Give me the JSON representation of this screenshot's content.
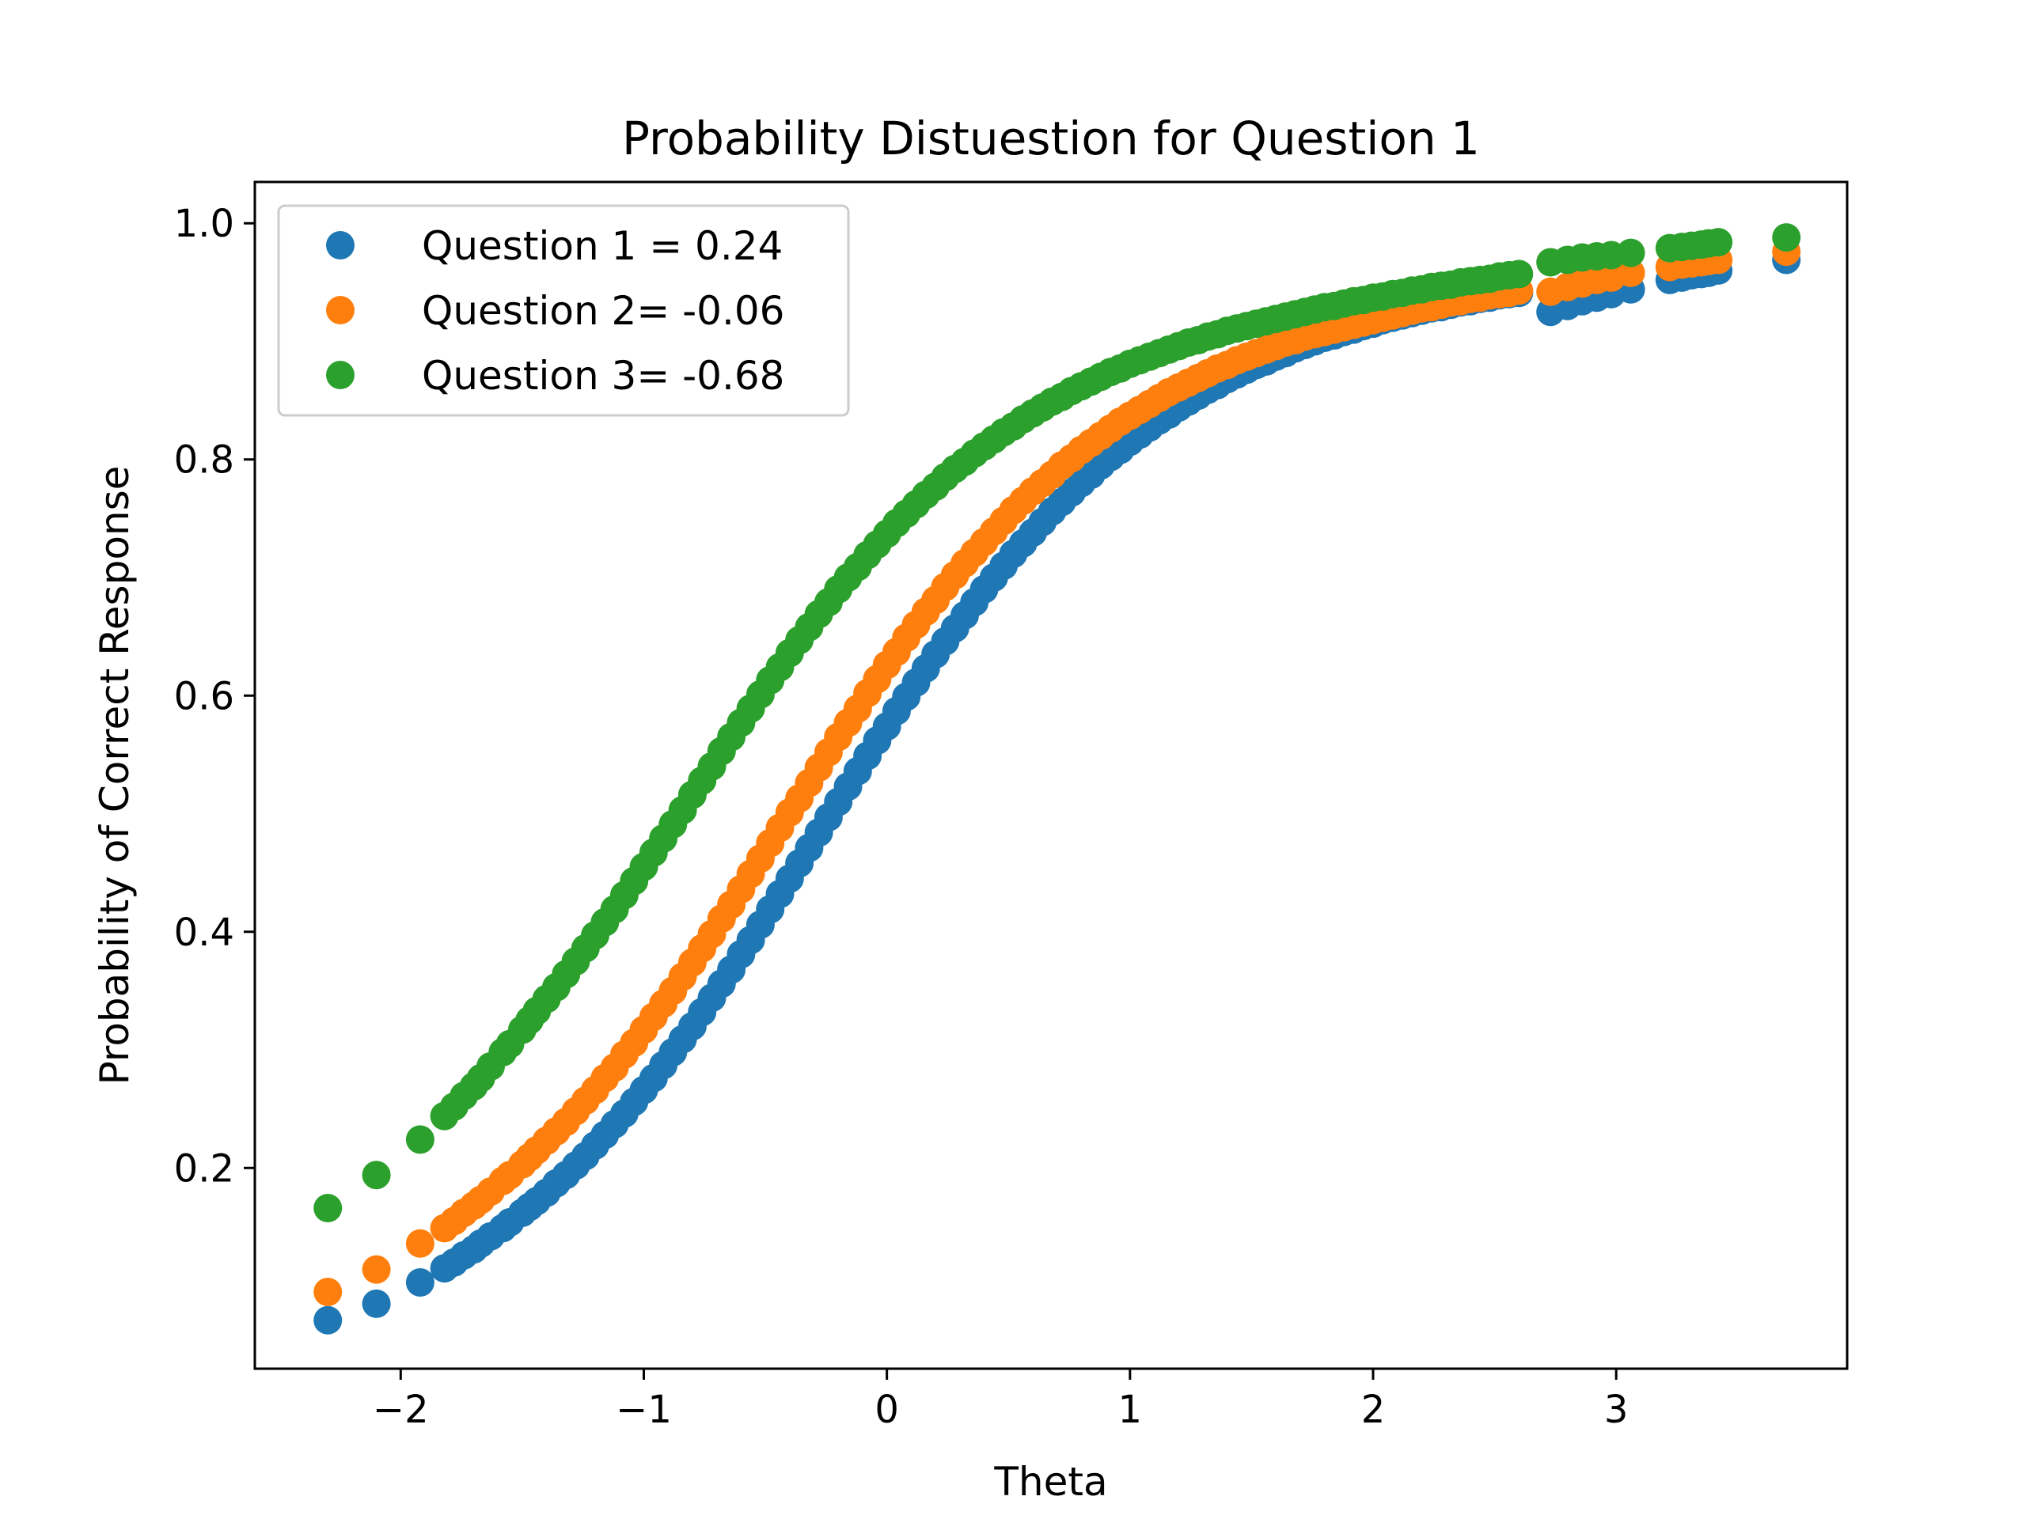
{
  "chart_data": {
    "type": "scatter",
    "title": "Probability Distuestion for Question 1",
    "xlabel": "Theta",
    "ylabel": "Probability of Correct Response",
    "xlim": [
      -2.6,
      3.95
    ],
    "ylim": [
      0.03,
      1.035
    ],
    "xticks": [
      -2,
      -1,
      0,
      1,
      2,
      3
    ],
    "yticks": [
      0.2,
      0.4,
      0.6,
      0.8,
      1.0
    ],
    "xtick_labels": [
      "−2",
      "−1",
      "0",
      "1",
      "2",
      "3"
    ],
    "ytick_labels": [
      "0.2",
      "0.4",
      "0.6",
      "0.8",
      "1.0"
    ],
    "grid": false,
    "legend_position": "upper-left",
    "x": [
      -2.3,
      -2.1,
      -1.92,
      -1.82,
      -1.78,
      -1.74,
      -1.7,
      -1.67,
      -1.63,
      -1.58,
      -1.55,
      -1.5,
      -1.47,
      -1.44,
      -1.4,
      -1.36,
      -1.32,
      -1.28,
      -1.24,
      -1.2,
      -1.16,
      -1.12,
      -1.08,
      -1.04,
      -1.0,
      -0.96,
      -0.92,
      -0.88,
      -0.84,
      -0.8,
      -0.76,
      -0.72,
      -0.68,
      -0.64,
      -0.6,
      -0.56,
      -0.52,
      -0.48,
      -0.44,
      -0.4,
      -0.36,
      -0.32,
      -0.28,
      -0.24,
      -0.2,
      -0.16,
      -0.12,
      -0.08,
      -0.04,
      0.0,
      0.04,
      0.08,
      0.12,
      0.16,
      0.2,
      0.24,
      0.28,
      0.32,
      0.36,
      0.4,
      0.44,
      0.48,
      0.52,
      0.56,
      0.6,
      0.64,
      0.68,
      0.72,
      0.76,
      0.8,
      0.84,
      0.88,
      0.92,
      0.96,
      1.0,
      1.04,
      1.08,
      1.12,
      1.16,
      1.2,
      1.24,
      1.28,
      1.32,
      1.36,
      1.4,
      1.44,
      1.48,
      1.52,
      1.56,
      1.6,
      1.64,
      1.68,
      1.72,
      1.76,
      1.8,
      1.84,
      1.88,
      1.92,
      1.96,
      2.0,
      2.04,
      2.08,
      2.12,
      2.16,
      2.2,
      2.24,
      2.28,
      2.32,
      2.36,
      2.4,
      2.44,
      2.48,
      2.52,
      2.56,
      2.6,
      2.73,
      2.8,
      2.86,
      2.92,
      2.98,
      3.06,
      3.22,
      3.27,
      3.31,
      3.35,
      3.38,
      3.42,
      3.7
    ],
    "series": [
      {
        "name": "Question 1 = 0.24",
        "color": "#1f77b4",
        "values": [
          0.071,
          0.085,
          0.103,
          0.115,
          0.12,
          0.126,
          0.131,
          0.136,
          0.142,
          0.149,
          0.154,
          0.162,
          0.167,
          0.172,
          0.179,
          0.187,
          0.194,
          0.202,
          0.21,
          0.219,
          0.228,
          0.237,
          0.246,
          0.256,
          0.266,
          0.276,
          0.287,
          0.298,
          0.309,
          0.32,
          0.332,
          0.344,
          0.356,
          0.368,
          0.381,
          0.393,
          0.406,
          0.419,
          0.432,
          0.445,
          0.458,
          0.471,
          0.484,
          0.497,
          0.51,
          0.523,
          0.536,
          0.549,
          0.562,
          0.574,
          0.587,
          0.599,
          0.611,
          0.623,
          0.635,
          0.646,
          0.657,
          0.668,
          0.679,
          0.69,
          0.7,
          0.71,
          0.72,
          0.729,
          0.738,
          0.747,
          0.756,
          0.764,
          0.772,
          0.78,
          0.787,
          0.795,
          0.802,
          0.808,
          0.815,
          0.821,
          0.827,
          0.833,
          0.838,
          0.844,
          0.849,
          0.854,
          0.859,
          0.863,
          0.868,
          0.872,
          0.876,
          0.88,
          0.883,
          0.887,
          0.89,
          0.894,
          0.897,
          0.9,
          0.903,
          0.905,
          0.908,
          0.91,
          0.913,
          0.915,
          0.918,
          0.92,
          0.922,
          0.924,
          0.926,
          0.928,
          0.929,
          0.931,
          0.933,
          0.934,
          0.936,
          0.937,
          0.939,
          0.94,
          0.941,
          0.925,
          0.93,
          0.934,
          0.937,
          0.94,
          0.944,
          0.952,
          0.954,
          0.956,
          0.957,
          0.958,
          0.96,
          0.969
        ]
      },
      {
        "name": "Question 2= -0.06",
        "color": "#ff7f0e",
        "values": [
          0.095,
          0.114,
          0.136,
          0.149,
          0.155,
          0.162,
          0.168,
          0.173,
          0.18,
          0.189,
          0.194,
          0.203,
          0.209,
          0.215,
          0.223,
          0.231,
          0.239,
          0.248,
          0.257,
          0.266,
          0.276,
          0.285,
          0.296,
          0.306,
          0.317,
          0.328,
          0.339,
          0.35,
          0.362,
          0.374,
          0.386,
          0.398,
          0.411,
          0.423,
          0.436,
          0.449,
          0.462,
          0.475,
          0.488,
          0.501,
          0.513,
          0.526,
          0.539,
          0.552,
          0.565,
          0.577,
          0.589,
          0.602,
          0.614,
          0.626,
          0.637,
          0.649,
          0.66,
          0.671,
          0.681,
          0.692,
          0.702,
          0.712,
          0.721,
          0.73,
          0.739,
          0.748,
          0.757,
          0.765,
          0.773,
          0.78,
          0.787,
          0.795,
          0.801,
          0.808,
          0.814,
          0.82,
          0.826,
          0.832,
          0.837,
          0.842,
          0.847,
          0.852,
          0.857,
          0.861,
          0.865,
          0.869,
          0.873,
          0.877,
          0.88,
          0.884,
          0.887,
          0.89,
          0.893,
          0.896,
          0.899,
          0.901,
          0.904,
          0.906,
          0.908,
          0.91,
          0.912,
          0.914,
          0.916,
          0.918,
          0.92,
          0.922,
          0.924,
          0.926,
          0.928,
          0.929,
          0.931,
          0.933,
          0.934,
          0.936,
          0.937,
          0.939,
          0.94,
          0.941,
          0.943,
          0.942,
          0.946,
          0.949,
          0.952,
          0.954,
          0.958,
          0.963,
          0.965,
          0.966,
          0.967,
          0.968,
          0.969,
          0.976
        ]
      },
      {
        "name": "Question 3= -0.68",
        "color": "#2ca02c",
        "values": [
          0.166,
          0.194,
          0.224,
          0.244,
          0.252,
          0.261,
          0.269,
          0.276,
          0.286,
          0.298,
          0.305,
          0.317,
          0.325,
          0.333,
          0.343,
          0.353,
          0.364,
          0.375,
          0.386,
          0.397,
          0.408,
          0.419,
          0.431,
          0.443,
          0.455,
          0.467,
          0.479,
          0.491,
          0.503,
          0.516,
          0.528,
          0.54,
          0.553,
          0.565,
          0.577,
          0.589,
          0.601,
          0.613,
          0.624,
          0.636,
          0.647,
          0.658,
          0.669,
          0.679,
          0.69,
          0.7,
          0.709,
          0.719,
          0.728,
          0.737,
          0.746,
          0.754,
          0.762,
          0.77,
          0.777,
          0.785,
          0.792,
          0.798,
          0.805,
          0.811,
          0.817,
          0.823,
          0.828,
          0.834,
          0.839,
          0.844,
          0.849,
          0.853,
          0.858,
          0.862,
          0.866,
          0.87,
          0.874,
          0.877,
          0.881,
          0.884,
          0.887,
          0.89,
          0.893,
          0.896,
          0.899,
          0.901,
          0.904,
          0.906,
          0.909,
          0.911,
          0.913,
          0.915,
          0.917,
          0.919,
          0.921,
          0.923,
          0.925,
          0.927,
          0.929,
          0.93,
          0.932,
          0.934,
          0.935,
          0.937,
          0.938,
          0.94,
          0.941,
          0.943,
          0.944,
          0.946,
          0.947,
          0.948,
          0.95,
          0.951,
          0.952,
          0.953,
          0.955,
          0.956,
          0.957,
          0.967,
          0.969,
          0.971,
          0.972,
          0.973,
          0.975,
          0.979,
          0.98,
          0.981,
          0.982,
          0.983,
          0.984,
          0.988
        ]
      }
    ]
  }
}
